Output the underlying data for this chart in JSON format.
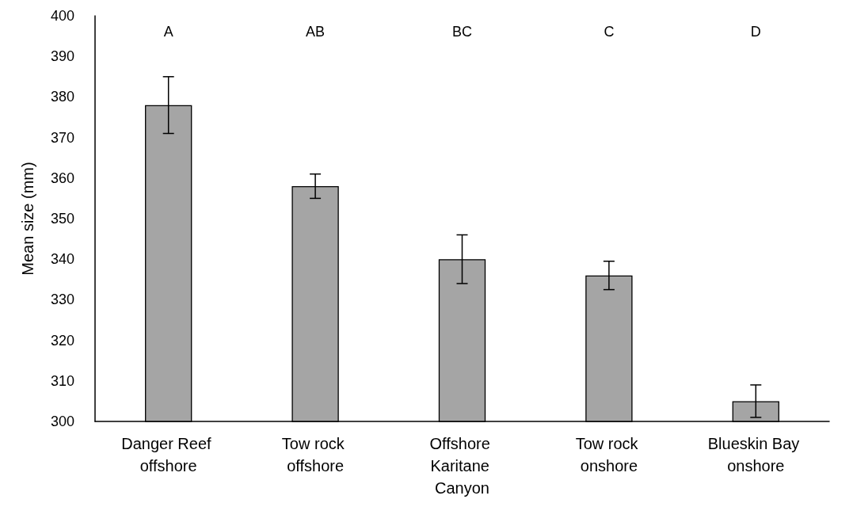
{
  "chart_data": {
    "type": "bar",
    "ylabel": "Mean size (mm)",
    "categories": [
      "Danger Reef offshore",
      "Tow rock offshore",
      "Offshore Karitane Canyon",
      "Tow rock onshore",
      "Blueskin Bay onshore"
    ],
    "values": [
      378,
      358,
      340,
      336,
      305
    ],
    "errors": [
      7,
      3,
      6,
      3.5,
      4
    ],
    "color": "#a5a5a5",
    "ylim": [
      300,
      400
    ],
    "yticks": [
      300,
      310,
      320,
      330,
      340,
      350,
      360,
      370,
      380,
      390,
      400
    ],
    "grid": false,
    "annotations": [
      "A",
      "AB",
      "BC",
      "C",
      "D"
    ]
  }
}
